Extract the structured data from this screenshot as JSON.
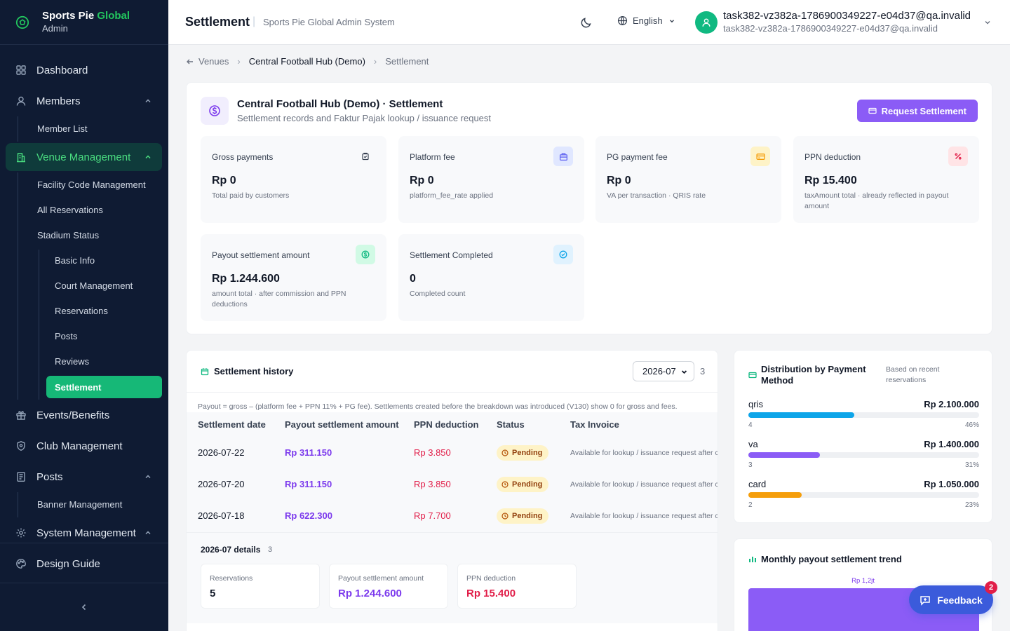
{
  "brand": {
    "name": "Sports Pie",
    "name_accent": "Global",
    "subtitle": "Admin"
  },
  "sidebar": {
    "dashboard": "Dashboard",
    "members": "Members",
    "member_list": "Member List",
    "venue_management": "Venue Management",
    "facility_code": "Facility Code Management",
    "all_reservations": "All Reservations",
    "stadium_status": "Stadium Status",
    "basic_info": "Basic Info",
    "court_management": "Court Management",
    "reservations": "Reservations",
    "posts_sub": "Posts",
    "reviews": "Reviews",
    "settlement": "Settlement",
    "events": "Events/Benefits",
    "club": "Club Management",
    "posts": "Posts",
    "banner": "Banner Management",
    "system": "System Management",
    "design_guide": "Design Guide"
  },
  "header": {
    "title": "Settlement",
    "subtitle": "Sports Pie Global Admin System",
    "language": "English",
    "user_name": "task382-vz382a-1786900349227-e04d37@qa.invalid",
    "user_email": "task382-vz382a-1786900349227-e04d37@qa.invalid"
  },
  "breadcrumb": {
    "venues": "Venues",
    "venue": "Central Football Hub (Demo)",
    "current": "Settlement"
  },
  "summary": {
    "title": "Central Football Hub (Demo) · Settlement",
    "subtitle": "Settlement records and Faktur Pajak lookup / issuance request",
    "request_button": "Request Settlement",
    "stats": [
      {
        "label": "Gross payments",
        "value": "Rp 0",
        "note": "Total paid by customers",
        "icon": "receipt-icon",
        "color": "#374151",
        "bg": "#f8f9fb"
      },
      {
        "label": "Platform fee",
        "value": "Rp 0",
        "note": "platform_fee_rate applied",
        "icon": "briefcase-icon",
        "color": "#6366f1",
        "bg": "#e0e7ff"
      },
      {
        "label": "PG payment fee",
        "value": "Rp 0",
        "note": "VA per transaction · QRIS rate",
        "icon": "credit-card-icon",
        "color": "#f59e0b",
        "bg": "#fef3c7"
      },
      {
        "label": "PPN deduction",
        "value": "Rp 15.400",
        "note": "taxAmount total · already reflected in payout amount",
        "icon": "percent-icon",
        "color": "#e11d48",
        "bg": "#ffe4e6"
      },
      {
        "label": "Payout settlement amount",
        "value": "Rp 1.244.600",
        "note": "amount total · after commission and PPN deductions",
        "icon": "dollar-circle-icon",
        "color": "#10b981",
        "bg": "#d1fae5"
      },
      {
        "label": "Settlement Completed",
        "value": "0",
        "note": "Completed count",
        "icon": "check-circle-icon",
        "color": "#0ea5e9",
        "bg": "#e0f2fe"
      }
    ]
  },
  "history": {
    "title": "Settlement history",
    "month": "2026-07",
    "count": "3",
    "note": "Payout = gross – (platform fee + PPN 11% + PG fee). Settlements created before the breakdown was introduced (V130) show 0 for gross and fees.",
    "columns": [
      "Settlement date",
      "Payout settlement amount",
      "PPN deduction",
      "Status",
      "Tax Invoice"
    ],
    "rows": [
      {
        "date": "2026-07-22",
        "payout": "Rp 311.150",
        "ppn": "Rp 3.850",
        "status": "Pending",
        "tax": "Available for lookup / issuance request after completion"
      },
      {
        "date": "2026-07-20",
        "payout": "Rp 311.150",
        "ppn": "Rp 3.850",
        "status": "Pending",
        "tax": "Available for lookup / issuance request after completion"
      },
      {
        "date": "2026-07-18",
        "payout": "Rp 622.300",
        "ppn": "Rp 7.700",
        "status": "Pending",
        "tax": "Available for lookup / issuance request after completion"
      }
    ],
    "details": {
      "title": "2026-07 details",
      "count": "3",
      "boxes": [
        {
          "label": "Reservations",
          "value": "5",
          "color": "#111827"
        },
        {
          "label": "Payout settlement amount",
          "value": "Rp 1.244.600",
          "color": "#7c3aed"
        },
        {
          "label": "PPN deduction",
          "value": "Rp 15.400",
          "color": "#e11d48"
        }
      ]
    }
  },
  "distribution": {
    "title": "Distribution by Payment Method",
    "subtitle": "Based on recent reservations",
    "methods": [
      {
        "name": "qris",
        "amount": "Rp 2.100.000",
        "count": "4",
        "pct": "46%",
        "share": 0.46,
        "color": "#0ea5e9"
      },
      {
        "name": "va",
        "amount": "Rp 1.400.000",
        "count": "3",
        "pct": "31%",
        "share": 0.31,
        "color": "#8b5cf6"
      },
      {
        "name": "card",
        "amount": "Rp 1.050.000",
        "count": "2",
        "pct": "23%",
        "share": 0.23,
        "color": "#f59e0b"
      }
    ]
  },
  "trend": {
    "title": "Monthly payout settlement trend",
    "bar_label": "Rp 1,2jt"
  },
  "feedback": {
    "label": "Feedback",
    "badge": "2"
  }
}
